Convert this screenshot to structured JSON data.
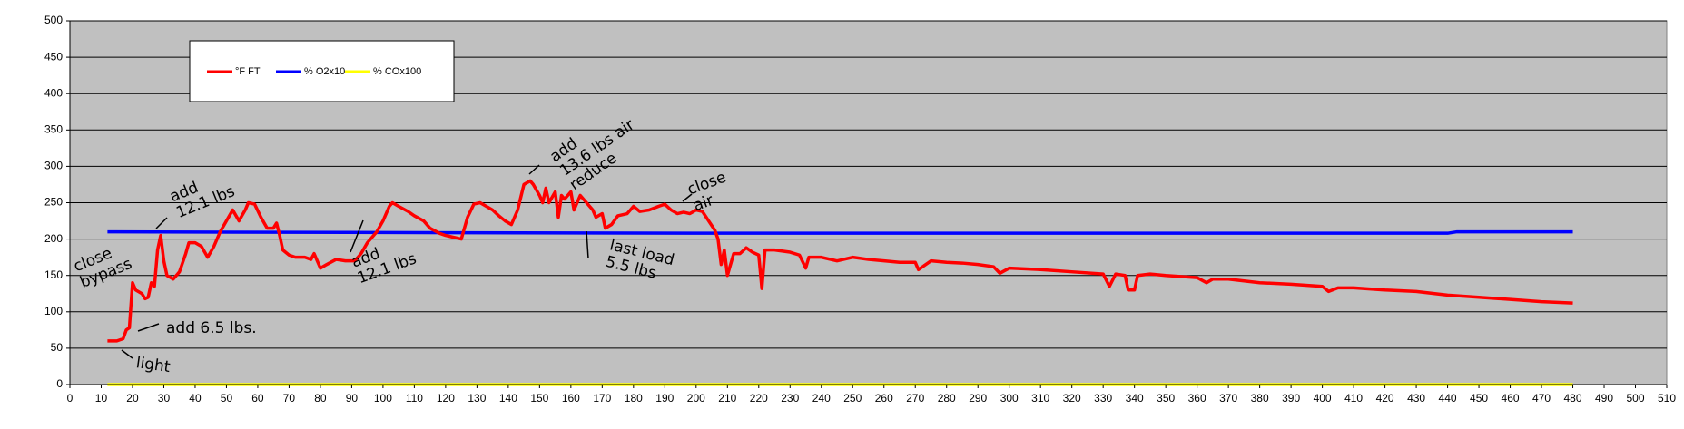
{
  "chart_data": {
    "type": "line",
    "xlim": [
      0,
      510
    ],
    "ylim": [
      0,
      500
    ],
    "xticks": [
      0,
      10,
      20,
      30,
      40,
      50,
      60,
      70,
      80,
      90,
      100,
      110,
      120,
      130,
      140,
      150,
      160,
      170,
      180,
      190,
      200,
      210,
      220,
      230,
      240,
      250,
      260,
      270,
      280,
      290,
      300,
      310,
      320,
      330,
      340,
      350,
      360,
      370,
      380,
      390,
      400,
      410,
      420,
      430,
      440,
      450,
      460,
      470,
      480,
      490,
      500,
      510
    ],
    "yticks": [
      0,
      50,
      100,
      150,
      200,
      250,
      300,
      350,
      400,
      450,
      500
    ],
    "grid": true,
    "legend": "top-left",
    "series": [
      {
        "name": "°F FT",
        "color": "#ff0000",
        "x": [
          12,
          15,
          17,
          18,
          19,
          20,
          21,
          23,
          24,
          25,
          26,
          27,
          28,
          29,
          30,
          31,
          33,
          35,
          37,
          38,
          40,
          42,
          44,
          46,
          48,
          50,
          52,
          54,
          56,
          57,
          59,
          61,
          63,
          65,
          66,
          67,
          68,
          70,
          72,
          75,
          77,
          78,
          80,
          82,
          85,
          88,
          91,
          93,
          95,
          98,
          100,
          102,
          103,
          105,
          108,
          110,
          113,
          115,
          118,
          120,
          123,
          125,
          127,
          129,
          131,
          133,
          135,
          137,
          139,
          141,
          143,
          145,
          147,
          148,
          150,
          151,
          152,
          153,
          155,
          156,
          157,
          158,
          160,
          161,
          163,
          165,
          167,
          168,
          170,
          171,
          173,
          175,
          178,
          180,
          182,
          185,
          188,
          190,
          192,
          194,
          196,
          198,
          200,
          202,
          204,
          206,
          207,
          208,
          209,
          210,
          212,
          214,
          216,
          218,
          220,
          221,
          222,
          225,
          230,
          233,
          235,
          236,
          240,
          245,
          250,
          255,
          260,
          265,
          270,
          271,
          275,
          280,
          285,
          290,
          295,
          297,
          300,
          310,
          320,
          330,
          332,
          334,
          337,
          338,
          340,
          341,
          345,
          350,
          360,
          363,
          365,
          370,
          380,
          390,
          400,
          402,
          405,
          410,
          420,
          430,
          440,
          450,
          460,
          470,
          480
        ],
        "values": [
          60,
          60,
          63,
          75,
          78,
          140,
          130,
          125,
          118,
          120,
          140,
          135,
          185,
          205,
          170,
          150,
          145,
          155,
          180,
          195,
          195,
          190,
          175,
          190,
          210,
          225,
          240,
          225,
          240,
          250,
          248,
          230,
          215,
          215,
          222,
          205,
          185,
          178,
          175,
          175,
          172,
          180,
          160,
          165,
          172,
          170,
          170,
          180,
          195,
          210,
          225,
          245,
          250,
          245,
          238,
          232,
          225,
          215,
          208,
          205,
          202,
          200,
          230,
          248,
          250,
          245,
          240,
          232,
          225,
          220,
          240,
          275,
          280,
          275,
          260,
          250,
          270,
          250,
          265,
          230,
          260,
          255,
          265,
          240,
          260,
          250,
          240,
          230,
          235,
          215,
          220,
          232,
          235,
          245,
          238,
          240,
          245,
          248,
          240,
          235,
          237,
          235,
          240,
          238,
          225,
          212,
          200,
          165,
          185,
          150,
          180,
          180,
          188,
          182,
          178,
          132,
          185,
          185,
          182,
          178,
          160,
          175,
          175,
          170,
          175,
          172,
          170,
          168,
          168,
          158,
          170,
          168,
          167,
          165,
          162,
          153,
          160,
          158,
          155,
          152,
          135,
          152,
          150,
          130,
          130,
          150,
          152,
          150,
          147,
          140,
          145,
          145,
          140,
          138,
          135,
          128,
          133,
          133,
          130,
          128,
          123,
          120,
          117,
          114,
          112
        ]
      },
      {
        "name": "% O2x10",
        "color": "#0000ff",
        "x": [
          12,
          100,
          200,
          300,
          440,
          443,
          480
        ],
        "values": [
          210,
          209,
          208,
          208,
          208,
          210,
          210
        ]
      },
      {
        "name": "% COx100",
        "color": "#ffff00",
        "x": [
          12,
          480
        ],
        "values": [
          0,
          0
        ]
      }
    ],
    "annotations": [
      {
        "lines": [
          "close",
          "bypass"
        ]
      },
      {
        "lines": [
          "add",
          "12.1 lbs"
        ]
      },
      {
        "lines": [
          "add 6.5 lbs."
        ]
      },
      {
        "lines": [
          "light"
        ]
      },
      {
        "lines": [
          "add",
          "12.1 lbs"
        ]
      },
      {
        "lines": [
          "add",
          "13.6 lbs air",
          "reduce"
        ]
      },
      {
        "lines": [
          "last load",
          "5.5 lbs"
        ]
      },
      {
        "lines": [
          "close",
          "air"
        ]
      }
    ]
  }
}
